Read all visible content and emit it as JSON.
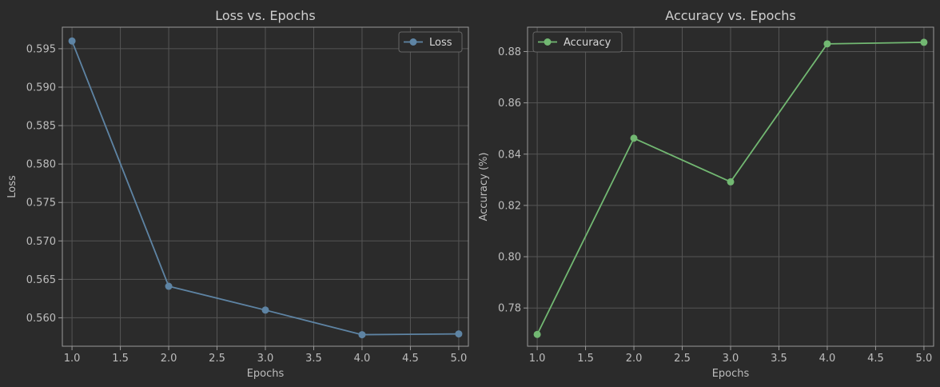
{
  "chart_data": [
    {
      "type": "line",
      "title": "Loss vs. Epochs",
      "xlabel": "Epochs",
      "ylabel": "Loss",
      "x": [
        1.0,
        2.0,
        3.0,
        4.0,
        5.0
      ],
      "series": [
        {
          "name": "Loss",
          "values": [
            0.596,
            0.5641,
            0.561,
            0.5578,
            0.5579
          ],
          "color": "#5e84a4"
        }
      ],
      "xlim": [
        0.9,
        5.1
      ],
      "ylim": [
        0.5563,
        0.5978
      ],
      "xticks": [
        "1.0",
        "1.5",
        "2.0",
        "2.5",
        "3.0",
        "3.5",
        "4.0",
        "4.5",
        "5.0"
      ],
      "yticks": [
        "0.560",
        "0.565",
        "0.570",
        "0.575",
        "0.580",
        "0.585",
        "0.590",
        "0.595"
      ],
      "grid": true,
      "legend": "top-right"
    },
    {
      "type": "line",
      "title": "Accuracy vs. Epochs",
      "xlabel": "Epochs",
      "ylabel": "Accuracy (%)",
      "x": [
        1.0,
        2.0,
        3.0,
        4.0,
        5.0
      ],
      "series": [
        {
          "name": "Accuracy",
          "values": [
            0.7697,
            0.8462,
            0.8292,
            0.883,
            0.8836
          ],
          "color": "#72b872"
        }
      ],
      "xlim": [
        0.9,
        5.1
      ],
      "ylim": [
        0.7651,
        0.8895
      ],
      "xticks": [
        "1.0",
        "1.5",
        "2.0",
        "2.5",
        "3.0",
        "3.5",
        "4.0",
        "4.5",
        "5.0"
      ],
      "yticks": [
        "0.78",
        "0.80",
        "0.82",
        "0.84",
        "0.86",
        "0.88"
      ],
      "grid": true,
      "legend": "top-left"
    }
  ],
  "colors": {
    "background": "#2b2b2b",
    "grid": "#555555",
    "frame": "#9a9a9a"
  }
}
